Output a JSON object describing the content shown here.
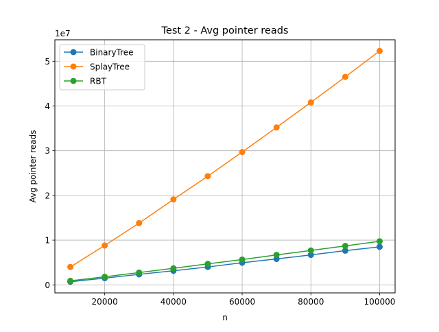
{
  "chart_data": {
    "type": "line",
    "title": "Test 2 - Avg pointer reads",
    "xlabel": "n",
    "ylabel": "Avg pointer reads",
    "y_offset_text": "1e7",
    "x": [
      10000,
      20000,
      30000,
      40000,
      50000,
      60000,
      70000,
      80000,
      90000,
      100000
    ],
    "xlim": [
      5500,
      104500
    ],
    "ylim": [
      -1800000,
      54800000
    ],
    "x_ticks": [
      20000,
      40000,
      60000,
      80000,
      100000
    ],
    "x_tick_labels": [
      "20000",
      "40000",
      "60000",
      "80000",
      "100000"
    ],
    "y_ticks": [
      0,
      10000000,
      20000000,
      30000000,
      40000000,
      50000000
    ],
    "y_tick_labels": [
      "0",
      "1",
      "2",
      "3",
      "4",
      "5"
    ],
    "grid": true,
    "legend_position": "top-left",
    "series": [
      {
        "name": "BinaryTree",
        "color": "#1f77b4",
        "values": [
          700000,
          1500000,
          2350000,
          3150000,
          4000000,
          4950000,
          5800000,
          6700000,
          7650000,
          8500000
        ]
      },
      {
        "name": "SplayTree",
        "color": "#ff7f0e",
        "values": [
          4000000,
          8800000,
          13800000,
          19100000,
          24300000,
          29700000,
          35200000,
          40800000,
          46500000,
          52300000
        ]
      },
      {
        "name": "RBT",
        "color": "#2ca02c",
        "values": [
          900000,
          1800000,
          2750000,
          3700000,
          4700000,
          5650000,
          6700000,
          7700000,
          8700000,
          9750000
        ]
      }
    ]
  }
}
